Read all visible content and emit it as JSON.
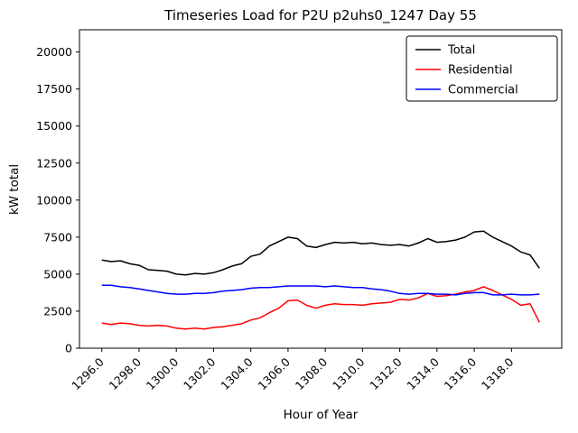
{
  "figure": {
    "title": "Timeseries Load for P2U p2uhs0_1247  Day 55",
    "xlabel": "Hour of Year",
    "ylabel": "kW total"
  },
  "chart_data": {
    "type": "line",
    "title": "Timeseries Load for P2U p2uhs0_1247  Day 55",
    "xlabel": "Hour of Year",
    "ylabel": "kW total",
    "xlim": [
      1294.8,
      1320.7
    ],
    "ylim": [
      0,
      21500
    ],
    "xticks": [
      1296.0,
      1298.0,
      1300.0,
      1302.0,
      1304.0,
      1306.0,
      1308.0,
      1310.0,
      1312.0,
      1314.0,
      1316.0,
      1318.0
    ],
    "yticks": [
      0,
      2500,
      5000,
      7500,
      10000,
      12500,
      15000,
      17500,
      20000
    ],
    "grid": false,
    "legend_position": "upper right",
    "x": [
      1296.0,
      1296.5,
      1297.0,
      1297.5,
      1298.0,
      1298.5,
      1299.0,
      1299.5,
      1300.0,
      1300.5,
      1301.0,
      1301.5,
      1302.0,
      1302.5,
      1303.0,
      1303.5,
      1304.0,
      1304.5,
      1305.0,
      1305.5,
      1306.0,
      1306.5,
      1307.0,
      1307.5,
      1308.0,
      1308.5,
      1309.0,
      1309.5,
      1310.0,
      1310.5,
      1311.0,
      1311.5,
      1312.0,
      1312.5,
      1313.0,
      1313.5,
      1314.0,
      1314.5,
      1315.0,
      1315.5,
      1316.0,
      1316.5,
      1317.0,
      1317.5,
      1318.0,
      1318.5,
      1319.0,
      1319.5
    ],
    "series": [
      {
        "name": "Total",
        "color": "#000000",
        "values": [
          5950,
          5850,
          5900,
          5700,
          5600,
          5300,
          5250,
          5200,
          5000,
          4950,
          5050,
          5000,
          5100,
          5300,
          5550,
          5700,
          6200,
          6350,
          6900,
          7200,
          7500,
          7400,
          6900,
          6800,
          7000,
          7150,
          7100,
          7150,
          7050,
          7100,
          7000,
          6950,
          7000,
          6900,
          7100,
          7400,
          7150,
          7200,
          7300,
          7500,
          7850,
          7900,
          7500,
          7200,
          6900,
          6500,
          6300,
          5400
        ]
      },
      {
        "name": "Residential",
        "color": "#ff0000",
        "values": [
          1700,
          1600,
          1700,
          1650,
          1550,
          1500,
          1550,
          1500,
          1350,
          1300,
          1350,
          1300,
          1400,
          1450,
          1550,
          1650,
          1900,
          2050,
          2400,
          2700,
          3200,
          3250,
          2900,
          2700,
          2900,
          3000,
          2950,
          2950,
          2900,
          3000,
          3050,
          3100,
          3300,
          3250,
          3400,
          3700,
          3500,
          3550,
          3650,
          3800,
          3900,
          4150,
          3900,
          3600,
          3300,
          2900,
          3000,
          1750
        ]
      },
      {
        "name": "Commercial",
        "color": "#0000ff",
        "values": [
          4250,
          4250,
          4150,
          4100,
          4000,
          3900,
          3800,
          3700,
          3650,
          3650,
          3700,
          3700,
          3750,
          3850,
          3900,
          3950,
          4050,
          4100,
          4100,
          4150,
          4200,
          4200,
          4200,
          4200,
          4150,
          4200,
          4150,
          4100,
          4100,
          4000,
          3950,
          3850,
          3700,
          3650,
          3700,
          3700,
          3650,
          3650,
          3600,
          3700,
          3750,
          3750,
          3600,
          3600,
          3650,
          3600,
          3600,
          3650
        ]
      }
    ]
  }
}
